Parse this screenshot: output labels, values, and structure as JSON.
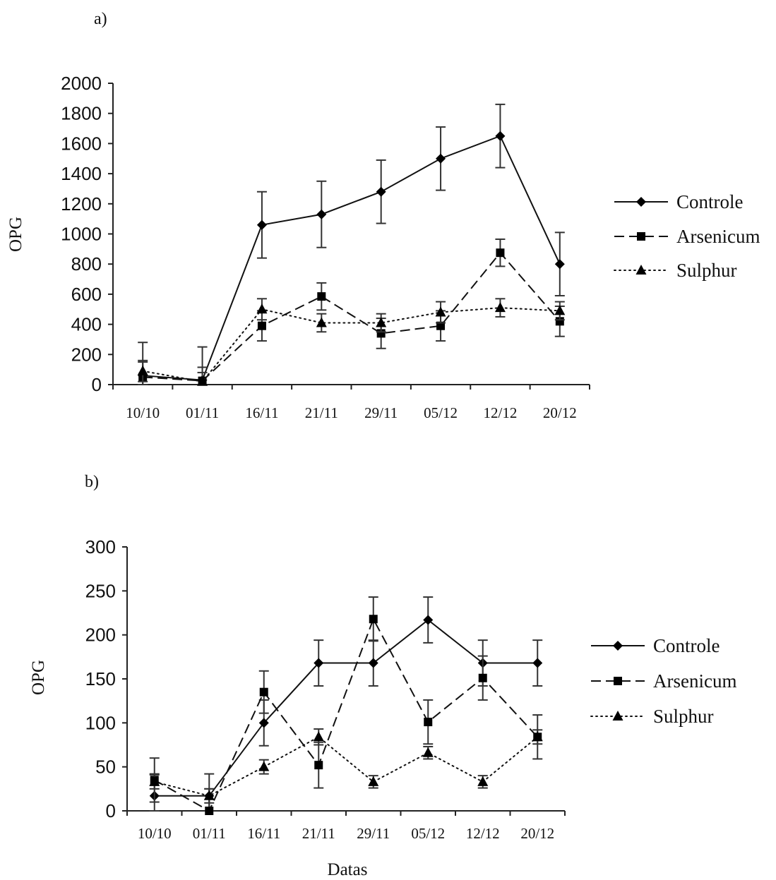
{
  "chart_data": [
    {
      "type": "line",
      "panel_label": "a)",
      "title": "",
      "xlabel": "",
      "ylabel": "OPG",
      "ylim": [
        0,
        2000
      ],
      "yticks": [
        0,
        200,
        400,
        600,
        800,
        1000,
        1200,
        1400,
        1600,
        1800,
        2000
      ],
      "categories": [
        "10/10",
        "01/11",
        "16/11",
        "21/11",
        "29/11",
        "05/12",
        "12/12",
        "20/12"
      ],
      "grid": false,
      "legend_position": "right",
      "series": [
        {
          "name": "Controle",
          "marker": "diamond",
          "line_style": "solid",
          "values": [
            60,
            30,
            1060,
            1130,
            1280,
            1500,
            1650,
            800
          ],
          "errors": [
            220,
            220,
            220,
            220,
            210,
            210,
            210,
            210
          ]
        },
        {
          "name": "Arsenicum",
          "marker": "square",
          "line_style": "dashed",
          "values": [
            50,
            25,
            390,
            585,
            340,
            390,
            875,
            420
          ],
          "errors": [
            100,
            90,
            100,
            90,
            100,
            100,
            90,
            100
          ]
        },
        {
          "name": "Sulphur",
          "marker": "triangle",
          "line_style": "dotted",
          "values": [
            90,
            20,
            500,
            410,
            410,
            480,
            510,
            490
          ],
          "errors": [
            70,
            60,
            70,
            60,
            60,
            70,
            60,
            60
          ]
        }
      ]
    },
    {
      "type": "line",
      "panel_label": "b)",
      "title": "",
      "xlabel": "Datas",
      "ylabel": "OPG",
      "ylim": [
        0,
        300
      ],
      "yticks": [
        0,
        50,
        100,
        150,
        200,
        250,
        300
      ],
      "categories": [
        "10/10",
        "01/11",
        "16/11",
        "21/11",
        "29/11",
        "05/12",
        "12/12",
        "20/12"
      ],
      "grid": false,
      "legend_position": "right",
      "series": [
        {
          "name": "Controle",
          "marker": "diamond",
          "line_style": "solid",
          "values": [
            17,
            17,
            100,
            168,
            168,
            217,
            168,
            168
          ],
          "errors": [
            25,
            25,
            26,
            26,
            26,
            26,
            26,
            26
          ]
        },
        {
          "name": "Arsenicum",
          "marker": "square",
          "line_style": "dashed",
          "values": [
            35,
            0,
            135,
            52,
            218,
            101,
            151,
            84
          ],
          "errors": [
            25,
            25,
            24,
            26,
            25,
            25,
            25,
            25
          ]
        },
        {
          "name": "Sulphur",
          "marker": "triangle",
          "line_style": "dotted",
          "values": [
            33,
            17,
            50,
            84,
            33,
            66,
            33,
            84
          ],
          "errors": [
            8,
            8,
            8,
            9,
            7,
            7,
            7,
            8
          ]
        }
      ]
    }
  ]
}
